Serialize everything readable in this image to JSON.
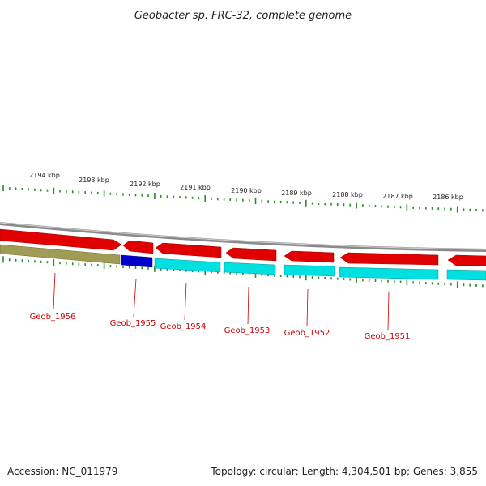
{
  "header": {
    "title": "Geobacter sp. FRC-32, complete genome"
  },
  "footer": {
    "accession": "Accession: NC_011979",
    "summary": "Topology: circular; Length: 4,304,501 bp; Genes: 3,855"
  },
  "ruler": {
    "labels": [
      "2194 kbp",
      "2193 kbp",
      "2192 kbp",
      "2191 kbp",
      "2190 kbp",
      "2189 kbp",
      "2188 kbp",
      "2187 kbp",
      "2186 kbp"
    ]
  },
  "colors": {
    "tick": "#2a8a2a",
    "backbone": "#8a8a8a",
    "forward_gene": "#e00000",
    "reverse_gene": "#00e0e0",
    "highlight_gene": "#0000cc",
    "olive_gene": "#a09b55",
    "label": "#cc0000"
  },
  "genes": [
    {
      "name": "Geob_1956",
      "strand": "reverse",
      "color": "olive"
    },
    {
      "name": "Geob_1955",
      "strand": "reverse",
      "color": "blue"
    },
    {
      "name": "Geob_1954",
      "strand": "reverse",
      "color": "cyan"
    },
    {
      "name": "Geob_1953",
      "strand": "reverse",
      "color": "cyan"
    },
    {
      "name": "Geob_1952",
      "strand": "reverse",
      "color": "cyan"
    },
    {
      "name": "Geob_1951",
      "strand": "reverse",
      "color": "cyan"
    }
  ]
}
